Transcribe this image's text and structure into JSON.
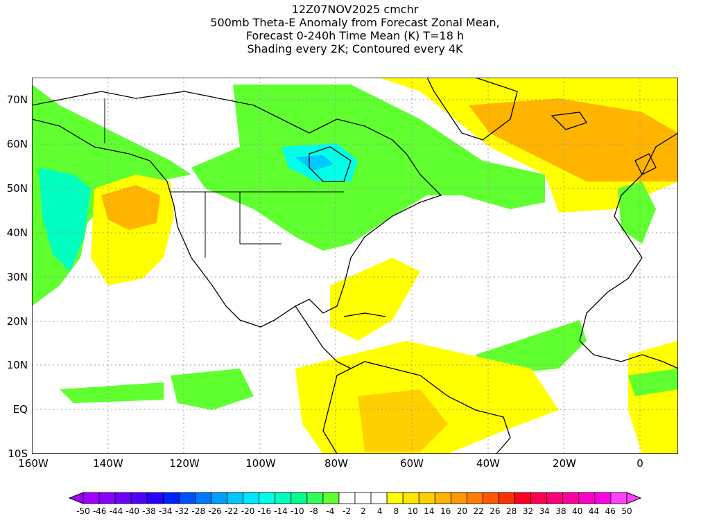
{
  "title": {
    "lines": [
      "12Z07NOV2025 cmchr",
      "500mb Theta-E Anomaly from Forecast Zonal Mean,",
      "Forecast 0-240h Time Mean (K) T=18 h",
      "Shading every 2K; Contoured every 4K"
    ]
  },
  "map": {
    "lon_range": [
      -160,
      10
    ],
    "lat_range": [
      -10,
      75
    ],
    "lat_labels": [
      "70N",
      "60N",
      "50N",
      "40N",
      "30N",
      "20N",
      "10N",
      "EQ",
      "10S"
    ],
    "lon_labels": [
      "160W",
      "140W",
      "120W",
      "100W",
      "80W",
      "60W",
      "40W",
      "20W",
      "0"
    ]
  },
  "colorbar": {
    "labels": [
      "-50",
      "-46",
      "-44",
      "-40",
      "-38",
      "-34",
      "-32",
      "-28",
      "-26",
      "-22",
      "-20",
      "-16",
      "-14",
      "-10",
      "-8",
      "-4",
      "-2",
      "2",
      "4",
      "8",
      "10",
      "14",
      "16",
      "20",
      "22",
      "26",
      "28",
      "32",
      "34",
      "38",
      "40",
      "44",
      "46",
      "50"
    ],
    "colors": [
      "#a000ff",
      "#8a00ff",
      "#6e00ff",
      "#5000ff",
      "#2a00ff",
      "#0020ff",
      "#0050ff",
      "#0078ff",
      "#00a0ff",
      "#00c8ff",
      "#00e6ff",
      "#00ffe6",
      "#00ffc0",
      "#00ff90",
      "#30ff60",
      "#60ff30",
      "#ffffff",
      "#ffffff",
      "#ffffff",
      "#ffff00",
      "#ffe600",
      "#ffd000",
      "#ffb400",
      "#ff9800",
      "#ff7c00",
      "#ff5a00",
      "#ff3000",
      "#ff0020",
      "#ff0050",
      "#ff0078",
      "#ff00a0",
      "#ff00c8",
      "#ff00e6",
      "#ff40ff"
    ]
  }
}
